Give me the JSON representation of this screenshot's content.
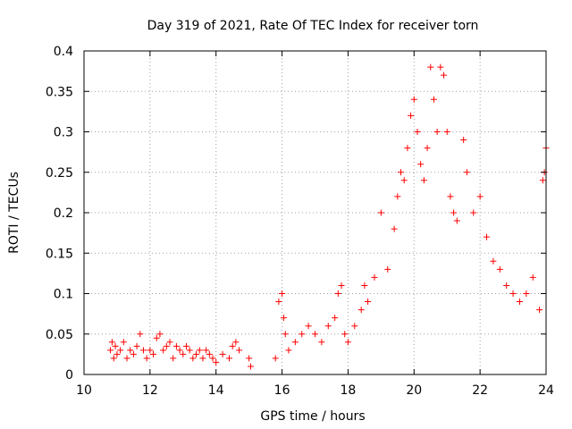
{
  "chart_data": {
    "type": "scatter",
    "title": "Day 319 of 2021, Rate Of TEC Index for receiver torn",
    "xlabel": "GPS time / hours",
    "ylabel": "ROTI / TECUs",
    "xlim": [
      10,
      24
    ],
    "ylim": [
      0,
      0.4
    ],
    "xticks": [
      10,
      12,
      14,
      16,
      18,
      20,
      22,
      24
    ],
    "xtick_labels": [
      "10",
      "12",
      "14",
      "16",
      "18",
      "20",
      "22",
      "24"
    ],
    "yticks": [
      0,
      0.05,
      0.1,
      0.15,
      0.2,
      0.25,
      0.3,
      0.35,
      0.4
    ],
    "ytick_labels": [
      "0",
      "0.05",
      "0.1",
      "0.15",
      "0.2",
      "0.25",
      "0.3",
      "0.35",
      "0.4"
    ],
    "grid": true,
    "marker": "+",
    "color": "#ff0000",
    "series": [
      {
        "name": "ROTI",
        "points": [
          [
            10.8,
            0.03
          ],
          [
            10.85,
            0.04
          ],
          [
            10.9,
            0.02
          ],
          [
            10.95,
            0.035
          ],
          [
            11.0,
            0.025
          ],
          [
            11.1,
            0.03
          ],
          [
            11.2,
            0.04
          ],
          [
            11.3,
            0.02
          ],
          [
            11.4,
            0.03
          ],
          [
            11.5,
            0.025
          ],
          [
            11.6,
            0.035
          ],
          [
            11.7,
            0.05
          ],
          [
            11.8,
            0.03
          ],
          [
            11.9,
            0.02
          ],
          [
            12.0,
            0.03
          ],
          [
            12.1,
            0.025
          ],
          [
            12.2,
            0.045
          ],
          [
            12.3,
            0.05
          ],
          [
            12.4,
            0.03
          ],
          [
            12.5,
            0.035
          ],
          [
            12.6,
            0.04
          ],
          [
            12.7,
            0.02
          ],
          [
            12.8,
            0.035
          ],
          [
            12.9,
            0.03
          ],
          [
            13.0,
            0.025
          ],
          [
            13.1,
            0.035
          ],
          [
            13.2,
            0.03
          ],
          [
            13.3,
            0.02
          ],
          [
            13.4,
            0.025
          ],
          [
            13.5,
            0.03
          ],
          [
            13.6,
            0.02
          ],
          [
            13.7,
            0.03
          ],
          [
            13.8,
            0.025
          ],
          [
            13.9,
            0.02
          ],
          [
            14.0,
            0.015
          ],
          [
            14.2,
            0.025
          ],
          [
            14.4,
            0.02
          ],
          [
            14.5,
            0.035
          ],
          [
            14.6,
            0.04
          ],
          [
            14.7,
            0.03
          ],
          [
            15.0,
            0.02
          ],
          [
            15.05,
            0.01
          ],
          [
            15.8,
            0.02
          ],
          [
            15.9,
            0.09
          ],
          [
            16.0,
            0.1
          ],
          [
            16.05,
            0.07
          ],
          [
            16.1,
            0.05
          ],
          [
            16.2,
            0.03
          ],
          [
            16.4,
            0.04
          ],
          [
            16.6,
            0.05
          ],
          [
            16.8,
            0.06
          ],
          [
            17.0,
            0.05
          ],
          [
            17.2,
            0.04
          ],
          [
            17.4,
            0.06
          ],
          [
            17.6,
            0.07
          ],
          [
            17.7,
            0.1
          ],
          [
            17.8,
            0.11
          ],
          [
            17.9,
            0.05
          ],
          [
            18.0,
            0.04
          ],
          [
            18.2,
            0.06
          ],
          [
            18.4,
            0.08
          ],
          [
            18.5,
            0.11
          ],
          [
            18.6,
            0.09
          ],
          [
            18.8,
            0.12
          ],
          [
            19.0,
            0.2
          ],
          [
            19.2,
            0.13
          ],
          [
            19.4,
            0.18
          ],
          [
            19.5,
            0.22
          ],
          [
            19.6,
            0.25
          ],
          [
            19.7,
            0.24
          ],
          [
            19.8,
            0.28
          ],
          [
            19.9,
            0.32
          ],
          [
            20.0,
            0.34
          ],
          [
            20.1,
            0.3
          ],
          [
            20.2,
            0.26
          ],
          [
            20.3,
            0.24
          ],
          [
            20.4,
            0.28
          ],
          [
            20.5,
            0.38
          ],
          [
            20.6,
            0.34
          ],
          [
            20.7,
            0.3
          ],
          [
            20.8,
            0.38
          ],
          [
            20.9,
            0.37
          ],
          [
            21.0,
            0.3
          ],
          [
            21.1,
            0.22
          ],
          [
            21.2,
            0.2
          ],
          [
            21.3,
            0.19
          ],
          [
            21.5,
            0.29
          ],
          [
            21.6,
            0.25
          ],
          [
            21.8,
            0.2
          ],
          [
            22.0,
            0.22
          ],
          [
            22.2,
            0.17
          ],
          [
            22.4,
            0.14
          ],
          [
            22.6,
            0.13
          ],
          [
            22.8,
            0.11
          ],
          [
            23.0,
            0.1
          ],
          [
            23.2,
            0.09
          ],
          [
            23.4,
            0.1
          ],
          [
            23.6,
            0.12
          ],
          [
            23.8,
            0.08
          ],
          [
            23.9,
            0.24
          ],
          [
            23.95,
            0.25
          ],
          [
            24.0,
            0.28
          ]
        ]
      }
    ]
  }
}
